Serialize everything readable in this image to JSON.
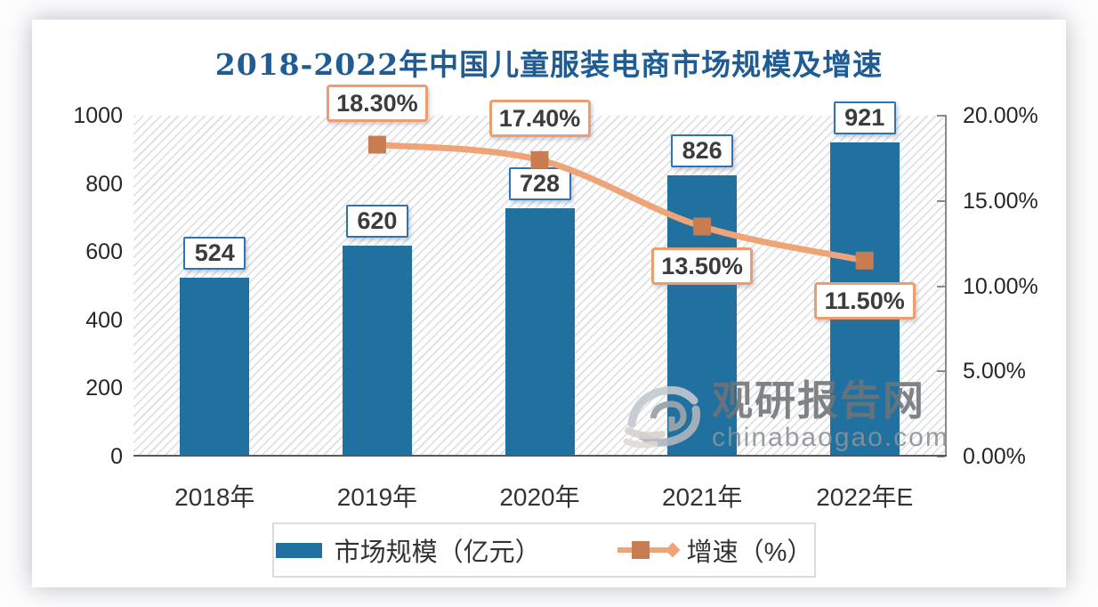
{
  "chart_data": {
    "type": "bar+line",
    "title": "2018-2022年中国儿童服装电商市场规模及增速",
    "title_color": "#1F5C94",
    "categories": [
      "2018年",
      "2019年",
      "2020年",
      "2021年",
      "2022年E"
    ],
    "series": [
      {
        "name": "市场规模（亿元）",
        "type": "bar",
        "axis": "left",
        "color": "#20719F",
        "values": [
          524,
          620,
          728,
          826,
          921
        ],
        "data_labels": [
          "524",
          "620",
          "728",
          "826",
          "921"
        ]
      },
      {
        "name": "增速（%）",
        "type": "line",
        "axis": "right",
        "color": "#EFA478",
        "marker_color": "#C97C50",
        "values": [
          null,
          18.3,
          17.4,
          13.5,
          11.5
        ],
        "data_labels": [
          null,
          "18.30%",
          "17.40%",
          "13.50%",
          "11.50%"
        ],
        "label_placement": [
          null,
          "above",
          "above",
          "below",
          "below"
        ]
      }
    ],
    "left_axis": {
      "min": 0,
      "max": 1000,
      "tick_values": [
        0,
        200,
        400,
        600,
        800,
        1000
      ],
      "tick_labels": [
        "0",
        "200",
        "400",
        "600",
        "800",
        "1000"
      ]
    },
    "right_axis": {
      "min": 0,
      "max": 20,
      "tick_values": [
        0,
        5,
        10,
        15,
        20
      ],
      "tick_labels": [
        "0.00%",
        "5.00%",
        "10.00%",
        "15.00%",
        "20.00%"
      ]
    },
    "legend": {
      "position": "bottom"
    },
    "plot_background": "diagonal-hatch"
  },
  "watermark": {
    "name": "观研报告网",
    "domain": "chinabaogao.com"
  }
}
